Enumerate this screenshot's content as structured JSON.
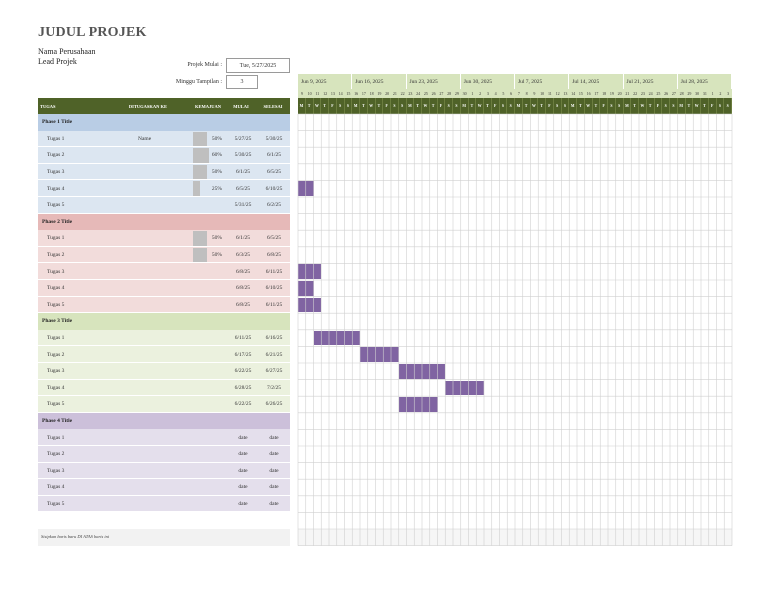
{
  "title": "JUDUL PROJEK",
  "company": "Nama Perusahaan",
  "lead": "Lead Projek",
  "start_label": "Projek Mulai :",
  "start_value": "Tue, 5/27/2025",
  "week_label": "Minggu Tampilan :",
  "week_value": "3",
  "headers": {
    "task": "TUGAS",
    "assignee": "DITUGASKAN KE",
    "progress": "KEMAJUAN",
    "start": "MULAI",
    "end": "SELESAI"
  },
  "weeks": [
    "Jun 9, 2025",
    "Jun 16, 2025",
    "Jun 23, 2025",
    "Jun 30, 2025",
    "Jul 7, 2025",
    "Jul 14, 2025",
    "Jul 21, 2025",
    "Jul 28, 2025"
  ],
  "day_nums": [
    "9",
    "10",
    "11",
    "12",
    "13",
    "14",
    "15",
    "16",
    "17",
    "18",
    "19",
    "20",
    "21",
    "22",
    "23",
    "24",
    "25",
    "26",
    "27",
    "28",
    "29",
    "30",
    "1",
    "2",
    "3",
    "4",
    "5",
    "6",
    "7",
    "8",
    "9",
    "10",
    "11",
    "12",
    "13",
    "14",
    "15",
    "16",
    "17",
    "18",
    "19",
    "20",
    "21",
    "22",
    "23",
    "24",
    "25",
    "26",
    "27",
    "28",
    "29",
    "30",
    "31",
    "1",
    "2",
    "3"
  ],
  "day_letters": [
    "M",
    "T",
    "W",
    "T",
    "F",
    "S",
    "S",
    "M",
    "T",
    "W",
    "T",
    "F",
    "S",
    "S",
    "M",
    "T",
    "W",
    "T",
    "F",
    "S",
    "S",
    "M",
    "T",
    "W",
    "T",
    "F",
    "S",
    "S",
    "M",
    "T",
    "W",
    "T",
    "F",
    "S",
    "S",
    "M",
    "T",
    "W",
    "T",
    "F",
    "S",
    "S",
    "M",
    "T",
    "W",
    "T",
    "F",
    "S",
    "S",
    "M",
    "T",
    "W",
    "T",
    "F",
    "S",
    "S"
  ],
  "phases": [
    {
      "title": "Phase 1 Title",
      "head": "#b9cde5",
      "row": "#dce6f1",
      "tasks": [
        {
          "name": "Tugas 1",
          "who": "Name",
          "pct": "50%",
          "p": 0.5,
          "start": "5/27/25",
          "end": "5/30/25",
          "bar": null
        },
        {
          "name": "Tugas 2",
          "who": "",
          "pct": "60%",
          "p": 0.6,
          "start": "5/30/25",
          "end": "6/1/25",
          "bar": null
        },
        {
          "name": "Tugas 3",
          "who": "",
          "pct": "50%",
          "p": 0.5,
          "start": "6/1/25",
          "end": "6/5/25",
          "bar": null
        },
        {
          "name": "Tugas 4",
          "who": "",
          "pct": "25%",
          "p": 0.25,
          "start": "6/5/25",
          "end": "6/10/25",
          "bar": [
            0,
            2
          ]
        },
        {
          "name": "Tugas 5",
          "who": "",
          "pct": "",
          "p": 0,
          "start": "5/31/25",
          "end": "6/2/25",
          "bar": null
        }
      ]
    },
    {
      "title": "Phase 2 Title",
      "head": "#e6b9b8",
      "row": "#f2dcdb",
      "tasks": [
        {
          "name": "Tugas 1",
          "who": "",
          "pct": "50%",
          "p": 0.5,
          "start": "6/1/25",
          "end": "6/5/25",
          "bar": null
        },
        {
          "name": "Tugas 2",
          "who": "",
          "pct": "50%",
          "p": 0.5,
          "start": "6/3/25",
          "end": "6/8/25",
          "bar": null
        },
        {
          "name": "Tugas 3",
          "who": "",
          "pct": "",
          "p": 0,
          "start": "6/8/25",
          "end": "6/11/25",
          "bar": [
            0,
            3
          ]
        },
        {
          "name": "Tugas 4",
          "who": "",
          "pct": "",
          "p": 0,
          "start": "6/8/25",
          "end": "6/10/25",
          "bar": [
            0,
            2
          ]
        },
        {
          "name": "Tugas 5",
          "who": "",
          "pct": "",
          "p": 0,
          "start": "6/8/25",
          "end": "6/11/25",
          "bar": [
            0,
            3
          ]
        }
      ]
    },
    {
      "title": "Phase 3 Title",
      "head": "#d7e4bd",
      "row": "#ebf1de",
      "tasks": [
        {
          "name": "Tugas 1",
          "who": "",
          "pct": "",
          "p": 0,
          "start": "6/11/25",
          "end": "6/16/25",
          "bar": [
            2,
            8
          ]
        },
        {
          "name": "Tugas 2",
          "who": "",
          "pct": "",
          "p": 0,
          "start": "6/17/25",
          "end": "6/21/25",
          "bar": [
            8,
            13
          ]
        },
        {
          "name": "Tugas 3",
          "who": "",
          "pct": "",
          "p": 0,
          "start": "6/22/25",
          "end": "6/27/25",
          "bar": [
            13,
            19
          ]
        },
        {
          "name": "Tugas 4",
          "who": "",
          "pct": "",
          "p": 0,
          "start": "6/28/25",
          "end": "7/2/25",
          "bar": [
            19,
            24
          ]
        },
        {
          "name": "Tugas 5",
          "who": "",
          "pct": "",
          "p": 0,
          "start": "6/22/25",
          "end": "6/26/25",
          "bar": [
            13,
            18
          ]
        }
      ]
    },
    {
      "title": "Phase 4 Title",
      "head": "#ccc0da",
      "row": "#e4dfec",
      "tasks": [
        {
          "name": "Tugas 1",
          "who": "",
          "pct": "",
          "p": 0,
          "start": "date",
          "end": "date",
          "bar": null
        },
        {
          "name": "Tugas 2",
          "who": "",
          "pct": "",
          "p": 0,
          "start": "date",
          "end": "date",
          "bar": null
        },
        {
          "name": "Tugas 3",
          "who": "",
          "pct": "",
          "p": 0,
          "start": "date",
          "end": "date",
          "bar": null
        },
        {
          "name": "Tugas 4",
          "who": "",
          "pct": "",
          "p": 0,
          "start": "date",
          "end": "date",
          "bar": null
        },
        {
          "name": "Tugas 5",
          "who": "",
          "pct": "",
          "p": 0,
          "start": "date",
          "end": "date",
          "bar": null
        }
      ]
    }
  ],
  "footer": "Sisipkan baris baru DI ATAS baris ini",
  "colors": {
    "header_bg": "#4f6228",
    "week_bg": "#d7e4bd",
    "bar": "#8064a2",
    "progress": "#bfbfbf"
  }
}
